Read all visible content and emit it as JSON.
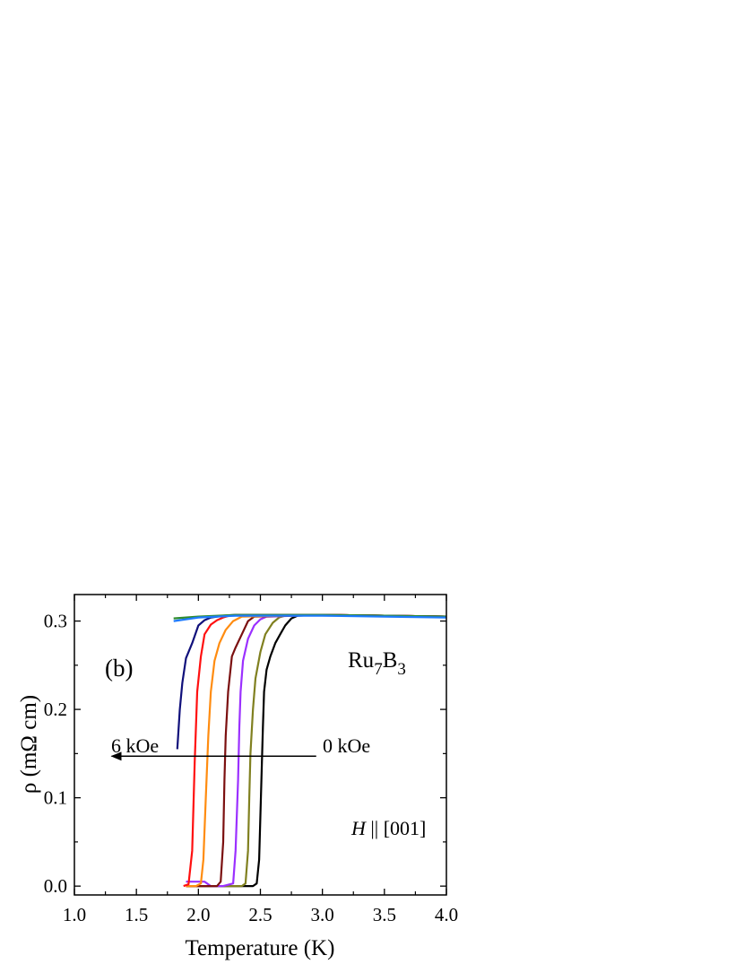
{
  "chart_data": {
    "type": "line",
    "panel_label": "(b)",
    "xlabel": "Temperature (K)",
    "ylabel": "ρ  (mΩ  cm)",
    "xlim": [
      1.0,
      4.0
    ],
    "ylim": [
      -0.01,
      0.33
    ],
    "x_ticks": [
      1.0,
      1.5,
      2.0,
      2.5,
      3.0,
      3.5,
      4.0
    ],
    "x_tick_labels": [
      "1.0",
      "1.5",
      "2.0",
      "2.5",
      "3.0",
      "3.5",
      "4.0"
    ],
    "y_ticks": [
      0.0,
      0.1,
      0.2,
      0.3
    ],
    "y_tick_labels": [
      "0.0",
      "0.1",
      "0.2",
      "0.3"
    ],
    "compound_label": {
      "main": "Ru",
      "sub1": "7",
      "mid": "B",
      "sub2": "3"
    },
    "field_direction_label": {
      "var": "H",
      "rest": " || [001]"
    },
    "arrow": {
      "from_label": "0 kOe",
      "to_label": "6 kOe",
      "from_x": 2.95,
      "to_x": 1.3,
      "y": 0.147
    },
    "grid": false,
    "series": [
      {
        "color": "#000000",
        "x": [
          1.9,
          2.3,
          2.44,
          2.47,
          2.49,
          2.5,
          2.51,
          2.52,
          2.53,
          2.55,
          2.58,
          2.62,
          2.66,
          2.7,
          2.75,
          2.8,
          3.0,
          3.5,
          4.0
        ],
        "y": [
          0.0,
          0.0,
          0.0,
          0.003,
          0.03,
          0.08,
          0.13,
          0.18,
          0.22,
          0.245,
          0.26,
          0.275,
          0.285,
          0.295,
          0.303,
          0.306,
          0.307,
          0.306,
          0.305
        ]
      },
      {
        "color": "#808020",
        "x": [
          1.9,
          2.2,
          2.35,
          2.38,
          2.4,
          2.41,
          2.42,
          2.44,
          2.46,
          2.5,
          2.54,
          2.6,
          2.65,
          2.7,
          3.0,
          3.5,
          4.0
        ],
        "y": [
          0.0,
          0.0,
          0.0,
          0.003,
          0.04,
          0.1,
          0.15,
          0.2,
          0.235,
          0.265,
          0.285,
          0.298,
          0.304,
          0.306,
          0.307,
          0.306,
          0.305
        ]
      },
      {
        "color": "#9B30FF",
        "x": [
          1.9,
          2.05,
          2.1,
          2.2,
          2.28,
          2.3,
          2.32,
          2.33,
          2.34,
          2.36,
          2.4,
          2.45,
          2.5,
          2.55,
          3.0,
          3.5,
          4.0
        ],
        "y": [
          0.005,
          0.005,
          0.0,
          0.0,
          0.003,
          0.04,
          0.12,
          0.18,
          0.22,
          0.255,
          0.28,
          0.295,
          0.302,
          0.305,
          0.307,
          0.306,
          0.305
        ]
      },
      {
        "color": "#7B1010",
        "x": [
          1.9,
          2.0,
          2.15,
          2.18,
          2.2,
          2.21,
          2.22,
          2.24,
          2.27,
          2.3,
          2.35,
          2.4,
          2.45,
          3.0,
          3.5,
          4.0
        ],
        "y": [
          0.0,
          0.0,
          0.0,
          0.005,
          0.05,
          0.12,
          0.17,
          0.22,
          0.26,
          0.27,
          0.285,
          0.3,
          0.305,
          0.307,
          0.306,
          0.305
        ]
      },
      {
        "color": "#FF8C10",
        "x": [
          1.9,
          1.98,
          2.02,
          2.04,
          2.06,
          2.08,
          2.1,
          2.13,
          2.17,
          2.22,
          2.28,
          2.35,
          3.0,
          3.5,
          4.0
        ],
        "y": [
          0.0,
          0.0,
          0.003,
          0.03,
          0.1,
          0.17,
          0.22,
          0.255,
          0.275,
          0.29,
          0.3,
          0.305,
          0.307,
          0.306,
          0.305
        ]
      },
      {
        "color": "#FF1010",
        "x": [
          1.88,
          1.92,
          1.95,
          1.97,
          1.99,
          2.02,
          2.05,
          2.1,
          2.15,
          2.2,
          2.25,
          2.3,
          3.0,
          3.5,
          4.0
        ],
        "y": [
          0.0,
          0.002,
          0.04,
          0.14,
          0.22,
          0.26,
          0.285,
          0.296,
          0.301,
          0.304,
          0.306,
          0.307,
          0.307,
          0.306,
          0.305
        ]
      },
      {
        "color": "#10107B",
        "x": [
          1.83,
          1.85,
          1.87,
          1.9,
          1.95,
          2.0,
          2.05,
          2.1,
          2.2,
          2.3,
          3.0,
          3.5,
          4.0
        ],
        "y": [
          0.155,
          0.2,
          0.23,
          0.258,
          0.275,
          0.295,
          0.301,
          0.304,
          0.306,
          0.307,
          0.307,
          0.306,
          0.305
        ]
      },
      {
        "color": "#2E8B2E",
        "x": [
          1.8,
          2.0,
          2.3,
          2.6,
          3.0,
          3.5,
          4.0
        ],
        "y": [
          0.303,
          0.305,
          0.307,
          0.307,
          0.307,
          0.306,
          0.305
        ]
      },
      {
        "color": "#1E7BFF",
        "x": [
          1.8,
          2.0,
          2.3,
          2.6,
          3.0,
          3.5,
          4.0
        ],
        "y": [
          0.3,
          0.304,
          0.306,
          0.306,
          0.306,
          0.305,
          0.304
        ]
      }
    ]
  }
}
